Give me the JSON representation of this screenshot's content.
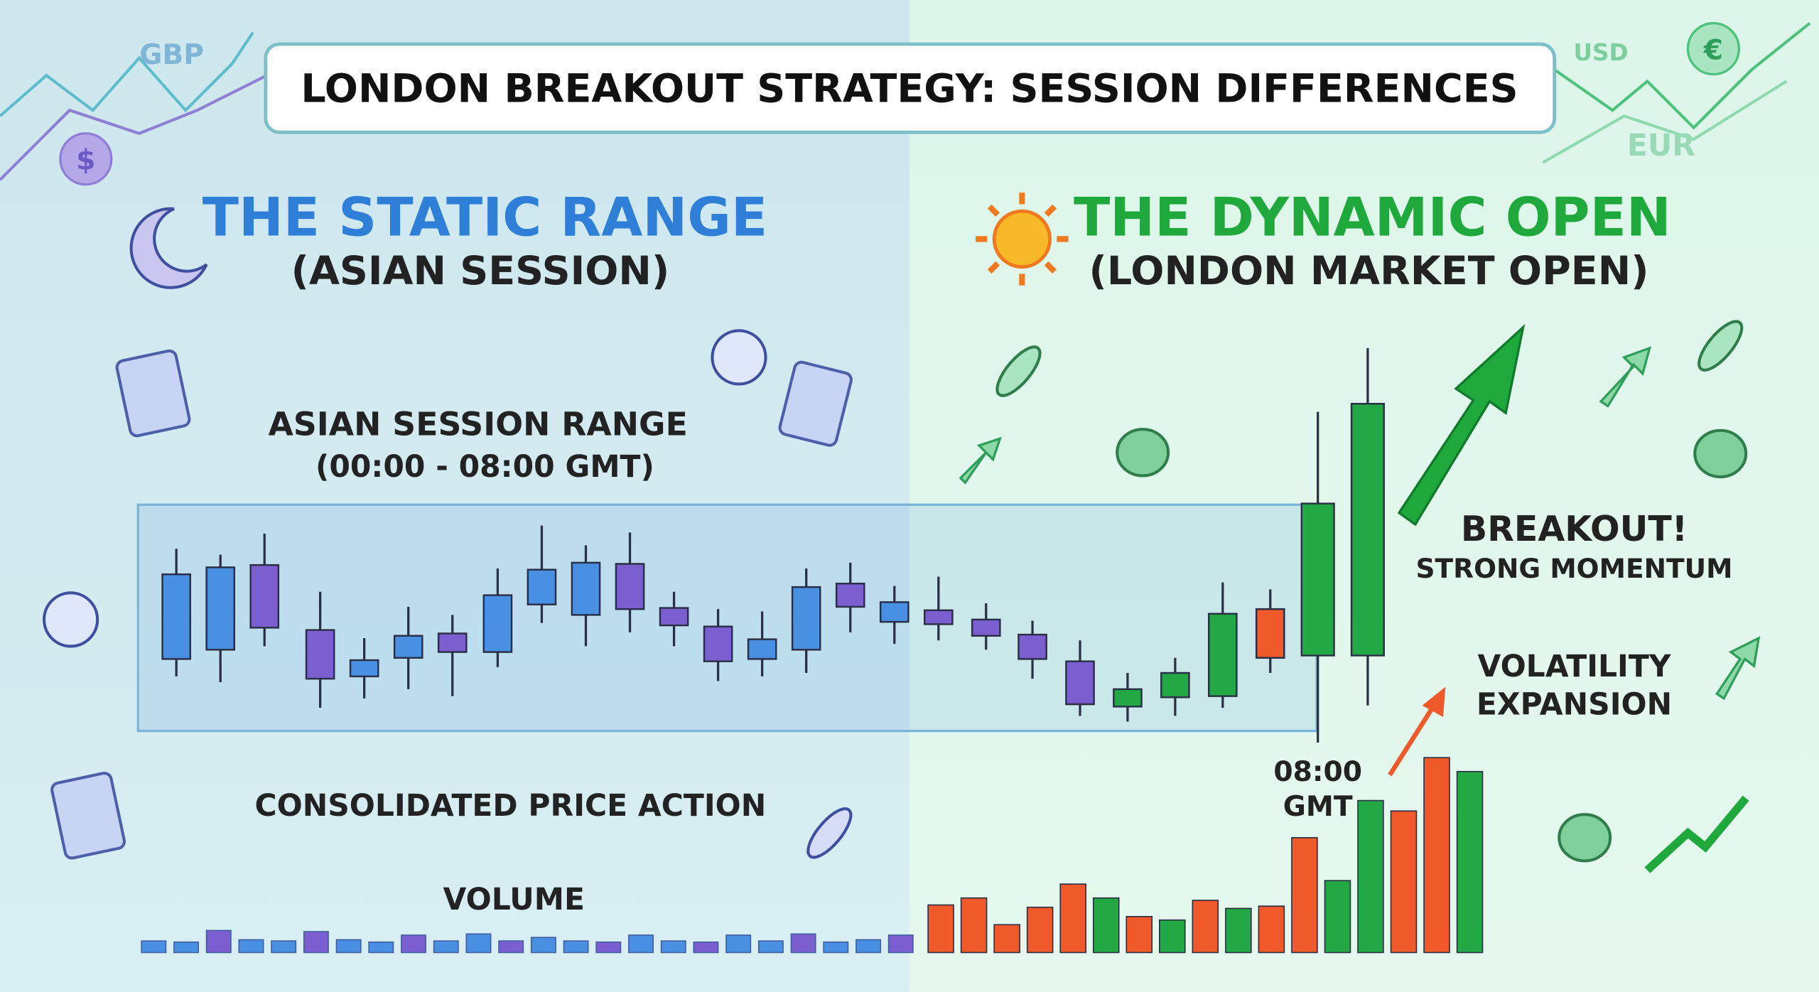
{
  "header": {
    "title": "LONDON BREAKOUT STRATEGY: SESSION DIFFERENCES"
  },
  "currencies": {
    "gbp": "GBP",
    "usd": "USD",
    "eur": "EUR",
    "dollar": "$",
    "euro": "€"
  },
  "left": {
    "heading": "THE STATIC RANGE",
    "subheading": "(ASIAN SESSION)",
    "range_label": "ASIAN SESSION RANGE",
    "range_time": "(00:00 - 08:00 GMT)",
    "consolidation": "CONSOLIDATED PRICE ACTION",
    "volume": "VOLUME"
  },
  "right": {
    "heading": "THE DYNAMIC OPEN",
    "subheading": "(LONDON MARKET OPEN)",
    "breakout": "BREAKOUT!",
    "momentum": "STRONG MOMENTUM",
    "volatility": "VOLATILITY",
    "expansion": "EXPANSION",
    "open_time": "08:00",
    "open_zone": "GMT"
  }
}
